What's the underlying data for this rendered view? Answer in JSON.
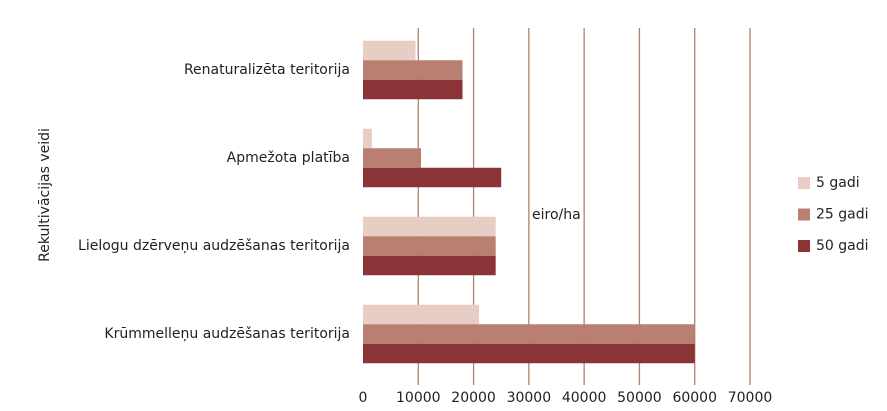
{
  "chart_data": {
    "type": "barh",
    "ylabel": "Rekultivācijas veidi",
    "annotation": "eiro/ha",
    "categories": [
      "Renaturalizēta teritorija",
      "Apmežota platība",
      "Lielogu dzērveņu audzēšanas teritorija",
      "Krūmmelleņu audzēšanas teritorija"
    ],
    "series": [
      {
        "name": "5 gadi",
        "color": "#e8cdc4",
        "values": [
          9500,
          1600,
          24000,
          21000
        ]
      },
      {
        "name": "25 gadi",
        "color": "#b97f70",
        "values": [
          18000,
          10500,
          24000,
          60000
        ]
      },
      {
        "name": "50 gadi",
        "color": "#8b3437",
        "values": [
          18000,
          25000,
          24000,
          60000
        ]
      }
    ],
    "xlim": [
      0,
      70000
    ],
    "xticks": [
      0,
      10000,
      20000,
      30000,
      40000,
      50000,
      60000,
      70000
    ],
    "grid": true,
    "legend": "right"
  }
}
